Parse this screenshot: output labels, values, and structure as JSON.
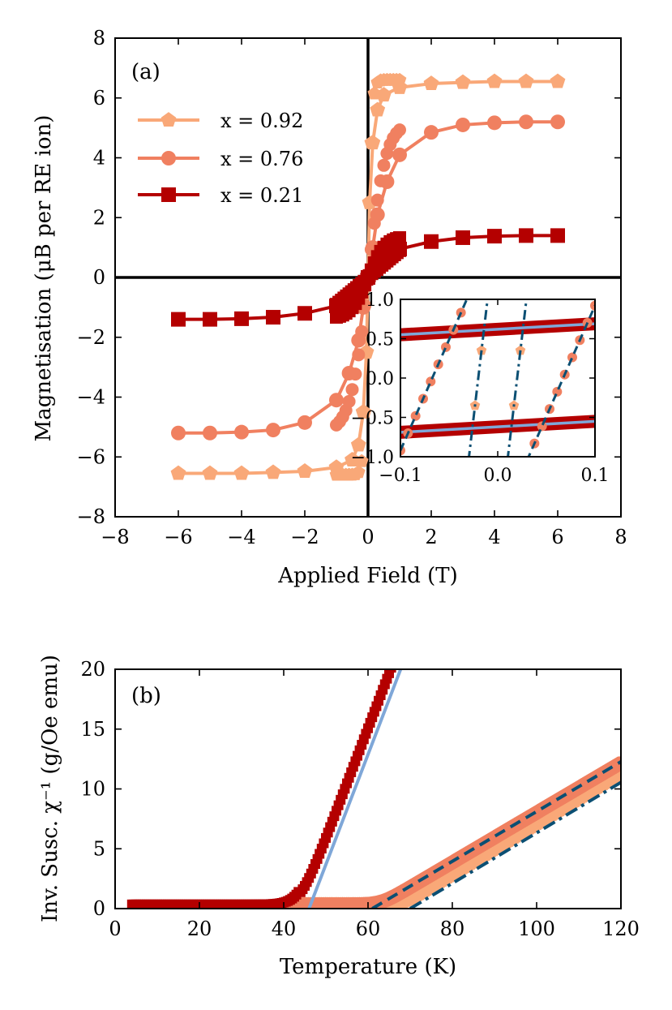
{
  "chart_data": [
    {
      "type": "line",
      "panel_label": "(a)",
      "xlabel": "Applied Field (T)",
      "ylabel": "Magnetisation (μB per RE ion)",
      "xlim": [
        -8,
        8
      ],
      "ylim": [
        -8,
        8
      ],
      "xticks": [
        "−8",
        "−6",
        "−4",
        "−2",
        "0",
        "2",
        "4",
        "6",
        "8"
      ],
      "yticks": [
        "−8",
        "−6",
        "−4",
        "−2",
        "0",
        "2",
        "4",
        "6",
        "8"
      ],
      "legend_position": "upper-left",
      "series": [
        {
          "name": "x = 0.92",
          "color": "#f9a878",
          "marker": "pentagon",
          "x": [
            -6,
            -5,
            -4,
            -3,
            -2,
            -1,
            -0.5,
            -0.3,
            -0.15,
            -0.05,
            0,
            0.05,
            0.15,
            0.3,
            0.5,
            1,
            2,
            3,
            4,
            5,
            6
          ],
          "y": [
            -6.55,
            -6.55,
            -6.55,
            -6.52,
            -6.48,
            -6.35,
            -6.1,
            -5.6,
            -4.5,
            -2.5,
            0,
            2.5,
            4.5,
            5.6,
            6.1,
            6.35,
            6.48,
            6.52,
            6.55,
            6.55,
            6.55
          ]
        },
        {
          "name": "x = 0.76",
          "color": "#f08060",
          "marker": "circle",
          "x": [
            -6,
            -5,
            -4,
            -3,
            -2,
            -1,
            -0.6,
            -0.3,
            -0.15,
            0,
            0.15,
            0.3,
            0.6,
            1,
            2,
            3,
            4,
            5,
            6
          ],
          "y": [
            -5.2,
            -5.2,
            -5.17,
            -5.1,
            -4.85,
            -4.1,
            -3.2,
            -2.1,
            -1.0,
            0,
            1.0,
            2.1,
            3.2,
            4.1,
            4.85,
            5.1,
            5.17,
            5.2,
            5.2
          ]
        },
        {
          "name": "x = 0.21",
          "color": "#b40000",
          "marker": "square",
          "x": [
            -6,
            -5,
            -4,
            -3,
            -2,
            -1,
            -0.5,
            0,
            0.5,
            1,
            2,
            3,
            4,
            5,
            6
          ],
          "y": [
            -1.4,
            -1.4,
            -1.38,
            -1.33,
            -1.2,
            -0.95,
            -0.7,
            0,
            0.7,
            0.95,
            1.2,
            1.33,
            1.38,
            1.4,
            1.4
          ]
        }
      ],
      "inset": {
        "xlim": [
          -0.1,
          0.1
        ],
        "ylim": [
          -1.0,
          1.0
        ],
        "xticks": [
          "−0.1",
          "0.0",
          "0.1"
        ],
        "yticks": [
          "−1.0",
          "−0.5",
          "0.0",
          "0.5",
          "1.0"
        ]
      }
    },
    {
      "type": "scatter",
      "panel_label": "(b)",
      "xlabel": "Temperature (K)",
      "ylabel": "Inv. Susc. χ⁻¹ (g/Oe emu)",
      "xlim": [
        0,
        120
      ],
      "ylim": [
        0,
        20
      ],
      "xticks": [
        "0",
        "20",
        "40",
        "60",
        "80",
        "100",
        "120"
      ],
      "yticks": [
        "0",
        "5",
        "10",
        "15",
        "20"
      ],
      "series": [
        {
          "name": "x = 0.21",
          "color": "#b40000",
          "marker": "square",
          "onset_T": 44,
          "slope": 0.92,
          "fit_x0": 46
        },
        {
          "name": "x = 0.76",
          "color": "#f08060",
          "marker": "circle",
          "onset_T": 63,
          "slope": 0.208,
          "fit_x0": 61
        },
        {
          "name": "x = 0.92",
          "color": "#f9a878",
          "marker": "pentagon",
          "onset_T": 68,
          "slope": 0.211,
          "fit_x0": 70
        }
      ],
      "fits": [
        {
          "name": "fit-0.21",
          "color": "#7fa7d8",
          "style": "solid"
        },
        {
          "name": "fit-0.76",
          "color": "#0b4f73",
          "style": "dashed"
        },
        {
          "name": "fit-0.92",
          "color": "#0b4f73",
          "style": "dashdot"
        }
      ]
    }
  ]
}
